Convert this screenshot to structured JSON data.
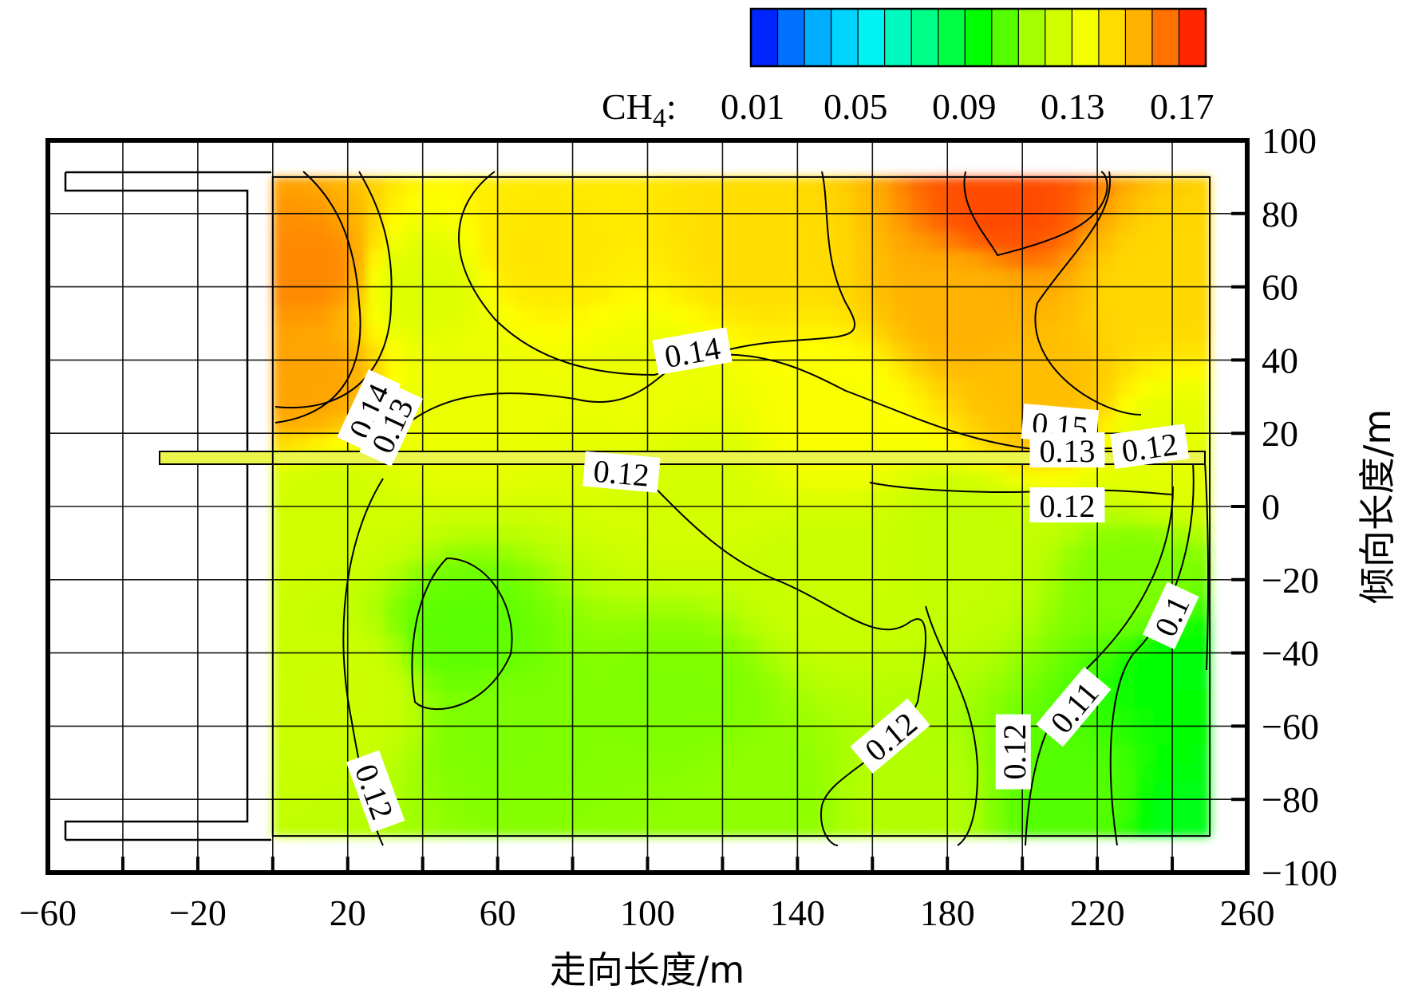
{
  "chart_data": {
    "type": "heatmap",
    "xlabel": "走向长度/m",
    "ylabel": "倾向长度/m",
    "xlim": [
      -60,
      260
    ],
    "ylim": [
      -100,
      100
    ],
    "x_ticks": [
      -60,
      -20,
      20,
      60,
      100,
      140,
      180,
      220,
      260
    ],
    "x_tick_labels": [
      "−60",
      "−20",
      "20",
      "60",
      "100",
      "140",
      "180",
      "220",
      "260"
    ],
    "y_ticks": [
      100,
      80,
      60,
      40,
      20,
      0,
      -20,
      -40,
      -60,
      -80,
      -100
    ],
    "y_tick_labels": [
      "100",
      "80",
      "60",
      "40",
      "20",
      "0",
      "−20",
      "−40",
      "−60",
      "−80",
      "−100"
    ],
    "grid": true,
    "colorbar": {
      "label_main": "CH",
      "label_sub": "4",
      "label_suffix": ":",
      "ticks": [
        "0.01",
        "0.05",
        "0.09",
        "0.13",
        "0.17"
      ],
      "min": 0.01,
      "max": 0.18,
      "steps": 17,
      "colors": [
        "#0000ff",
        "#00a0ff",
        "#00f0ff",
        "#00ff90",
        "#00ff00",
        "#b0ff00",
        "#ffff00",
        "#ffa000",
        "#ff0000"
      ]
    },
    "field": {
      "x_range": [
        0,
        250
      ],
      "y_range": [
        -90,
        90
      ],
      "samples": [
        {
          "x": 10,
          "y": 65,
          "v": 0.162
        },
        {
          "x": 8,
          "y": 35,
          "v": 0.158
        },
        {
          "x": 195,
          "y": 82,
          "v": 0.17
        },
        {
          "x": 185,
          "y": 55,
          "v": 0.155
        },
        {
          "x": 205,
          "y": 30,
          "v": 0.152
        },
        {
          "x": 240,
          "y": 60,
          "v": 0.146
        },
        {
          "x": 130,
          "y": 70,
          "v": 0.145
        },
        {
          "x": 70,
          "y": 70,
          "v": 0.143
        },
        {
          "x": 40,
          "y": 60,
          "v": 0.128
        },
        {
          "x": 50,
          "y": 30,
          "v": 0.132
        },
        {
          "x": 100,
          "y": 30,
          "v": 0.132
        },
        {
          "x": 150,
          "y": 25,
          "v": 0.136
        },
        {
          "x": 240,
          "y": 15,
          "v": 0.13
        },
        {
          "x": 15,
          "y": 0,
          "v": 0.125
        },
        {
          "x": 20,
          "y": -50,
          "v": 0.124
        },
        {
          "x": 50,
          "y": -35,
          "v": 0.106
        },
        {
          "x": 60,
          "y": -60,
          "v": 0.11
        },
        {
          "x": 110,
          "y": -50,
          "v": 0.11
        },
        {
          "x": 130,
          "y": -80,
          "v": 0.112
        },
        {
          "x": 110,
          "y": 5,
          "v": 0.126
        },
        {
          "x": 150,
          "y": -20,
          "v": 0.123
        },
        {
          "x": 185,
          "y": -10,
          "v": 0.121
        },
        {
          "x": 170,
          "y": -80,
          "v": 0.117
        },
        {
          "x": 215,
          "y": -80,
          "v": 0.105
        },
        {
          "x": 245,
          "y": -45,
          "v": 0.094
        },
        {
          "x": 245,
          "y": -85,
          "v": 0.092
        },
        {
          "x": 230,
          "y": -20,
          "v": 0.11
        }
      ]
    },
    "contour_labels": [
      {
        "text": "0.14",
        "x": 112,
        "y": 42,
        "angle": -10
      },
      {
        "text": "0.14",
        "x": 26,
        "y": 26,
        "angle": -65
      },
      {
        "text": "0.13",
        "x": 32,
        "y": 22,
        "angle": -65
      },
      {
        "text": "0.12",
        "x": 93,
        "y": 9,
        "angle": 5
      },
      {
        "text": "0.15",
        "x": 210,
        "y": 22,
        "angle": 5
      },
      {
        "text": "0.13",
        "x": 212,
        "y": 15,
        "angle": 0
      },
      {
        "text": "0.12",
        "x": 234,
        "y": 16,
        "angle": -8
      },
      {
        "text": "0.12",
        "x": 212,
        "y": 0,
        "angle": 0
      },
      {
        "text": "0.1",
        "x": 240,
        "y": -30,
        "angle": -65
      },
      {
        "text": "0.11",
        "x": 214,
        "y": -55,
        "angle": -50
      },
      {
        "text": "0.12",
        "x": 198,
        "y": -67,
        "angle": -90
      },
      {
        "text": "0.12",
        "x": 165,
        "y": -63,
        "angle": -40
      },
      {
        "text": "0.12",
        "x": 27,
        "y": -78,
        "angle": 70
      }
    ]
  }
}
